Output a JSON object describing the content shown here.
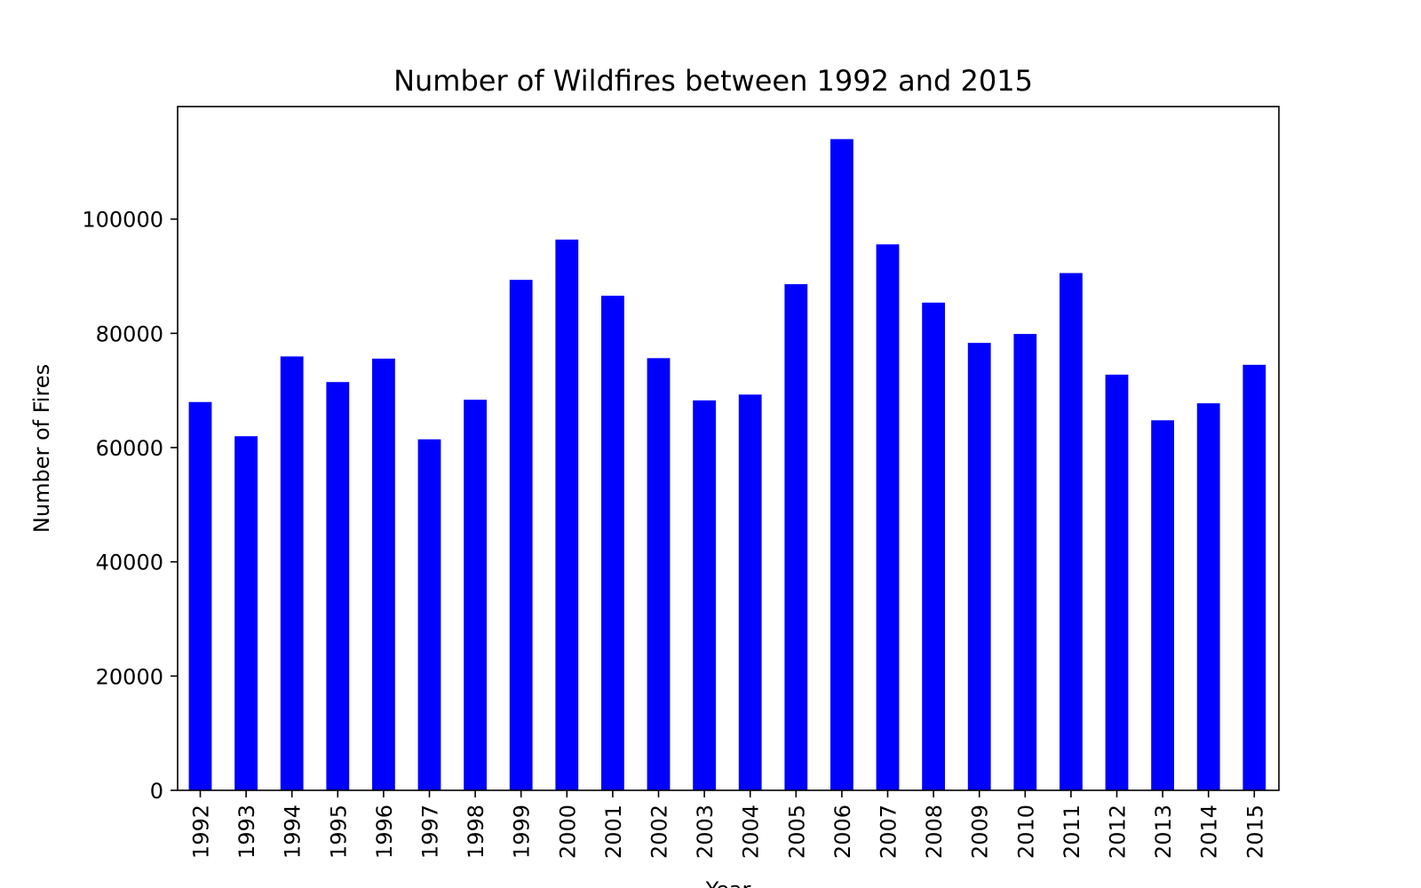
{
  "chart_data": {
    "type": "bar",
    "title": "Number of Wildfires between 1992 and 2015",
    "xlabel": "Year",
    "ylabel": "Number of Fires",
    "categories": [
      "1992",
      "1993",
      "1994",
      "1995",
      "1996",
      "1997",
      "1998",
      "1999",
      "2000",
      "2001",
      "2002",
      "2003",
      "2004",
      "2005",
      "2006",
      "2007",
      "2008",
      "2009",
      "2010",
      "2011",
      "2012",
      "2013",
      "2014",
      "2015"
    ],
    "values": [
      67975,
      61989,
      75955,
      71472,
      75574,
      61450,
      68370,
      89363,
      96416,
      86587,
      75656,
      68261,
      69279,
      88604,
      114004,
      95573,
      85378,
      78325,
      79889,
      90552,
      72769,
      64780,
      67753,
      74491
    ],
    "yticks": [
      0,
      20000,
      40000,
      60000,
      80000,
      100000
    ],
    "ylim": [
      0,
      119700
    ],
    "bar_color": "#0000ff",
    "grid": false,
    "legend": null
  }
}
